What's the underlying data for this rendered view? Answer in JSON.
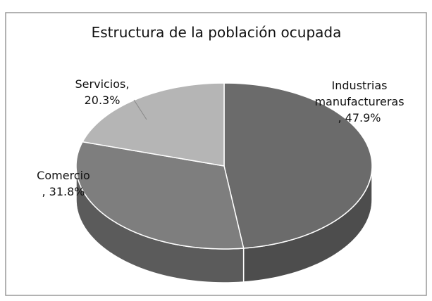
{
  "chart_data": {
    "type": "pie",
    "title": "Estructura de la población ocupada",
    "categories": [
      "Industrias manufactureras",
      "Comercio",
      "Servicios,"
    ],
    "values": [
      47.9,
      31.8,
      20.3
    ],
    "value_labels": [
      ", 47.9%",
      ", 31.8%",
      "20.3%"
    ],
    "colors": [
      "#6b6b6b",
      "#7e7e7e",
      "#b5b5b5"
    ]
  }
}
